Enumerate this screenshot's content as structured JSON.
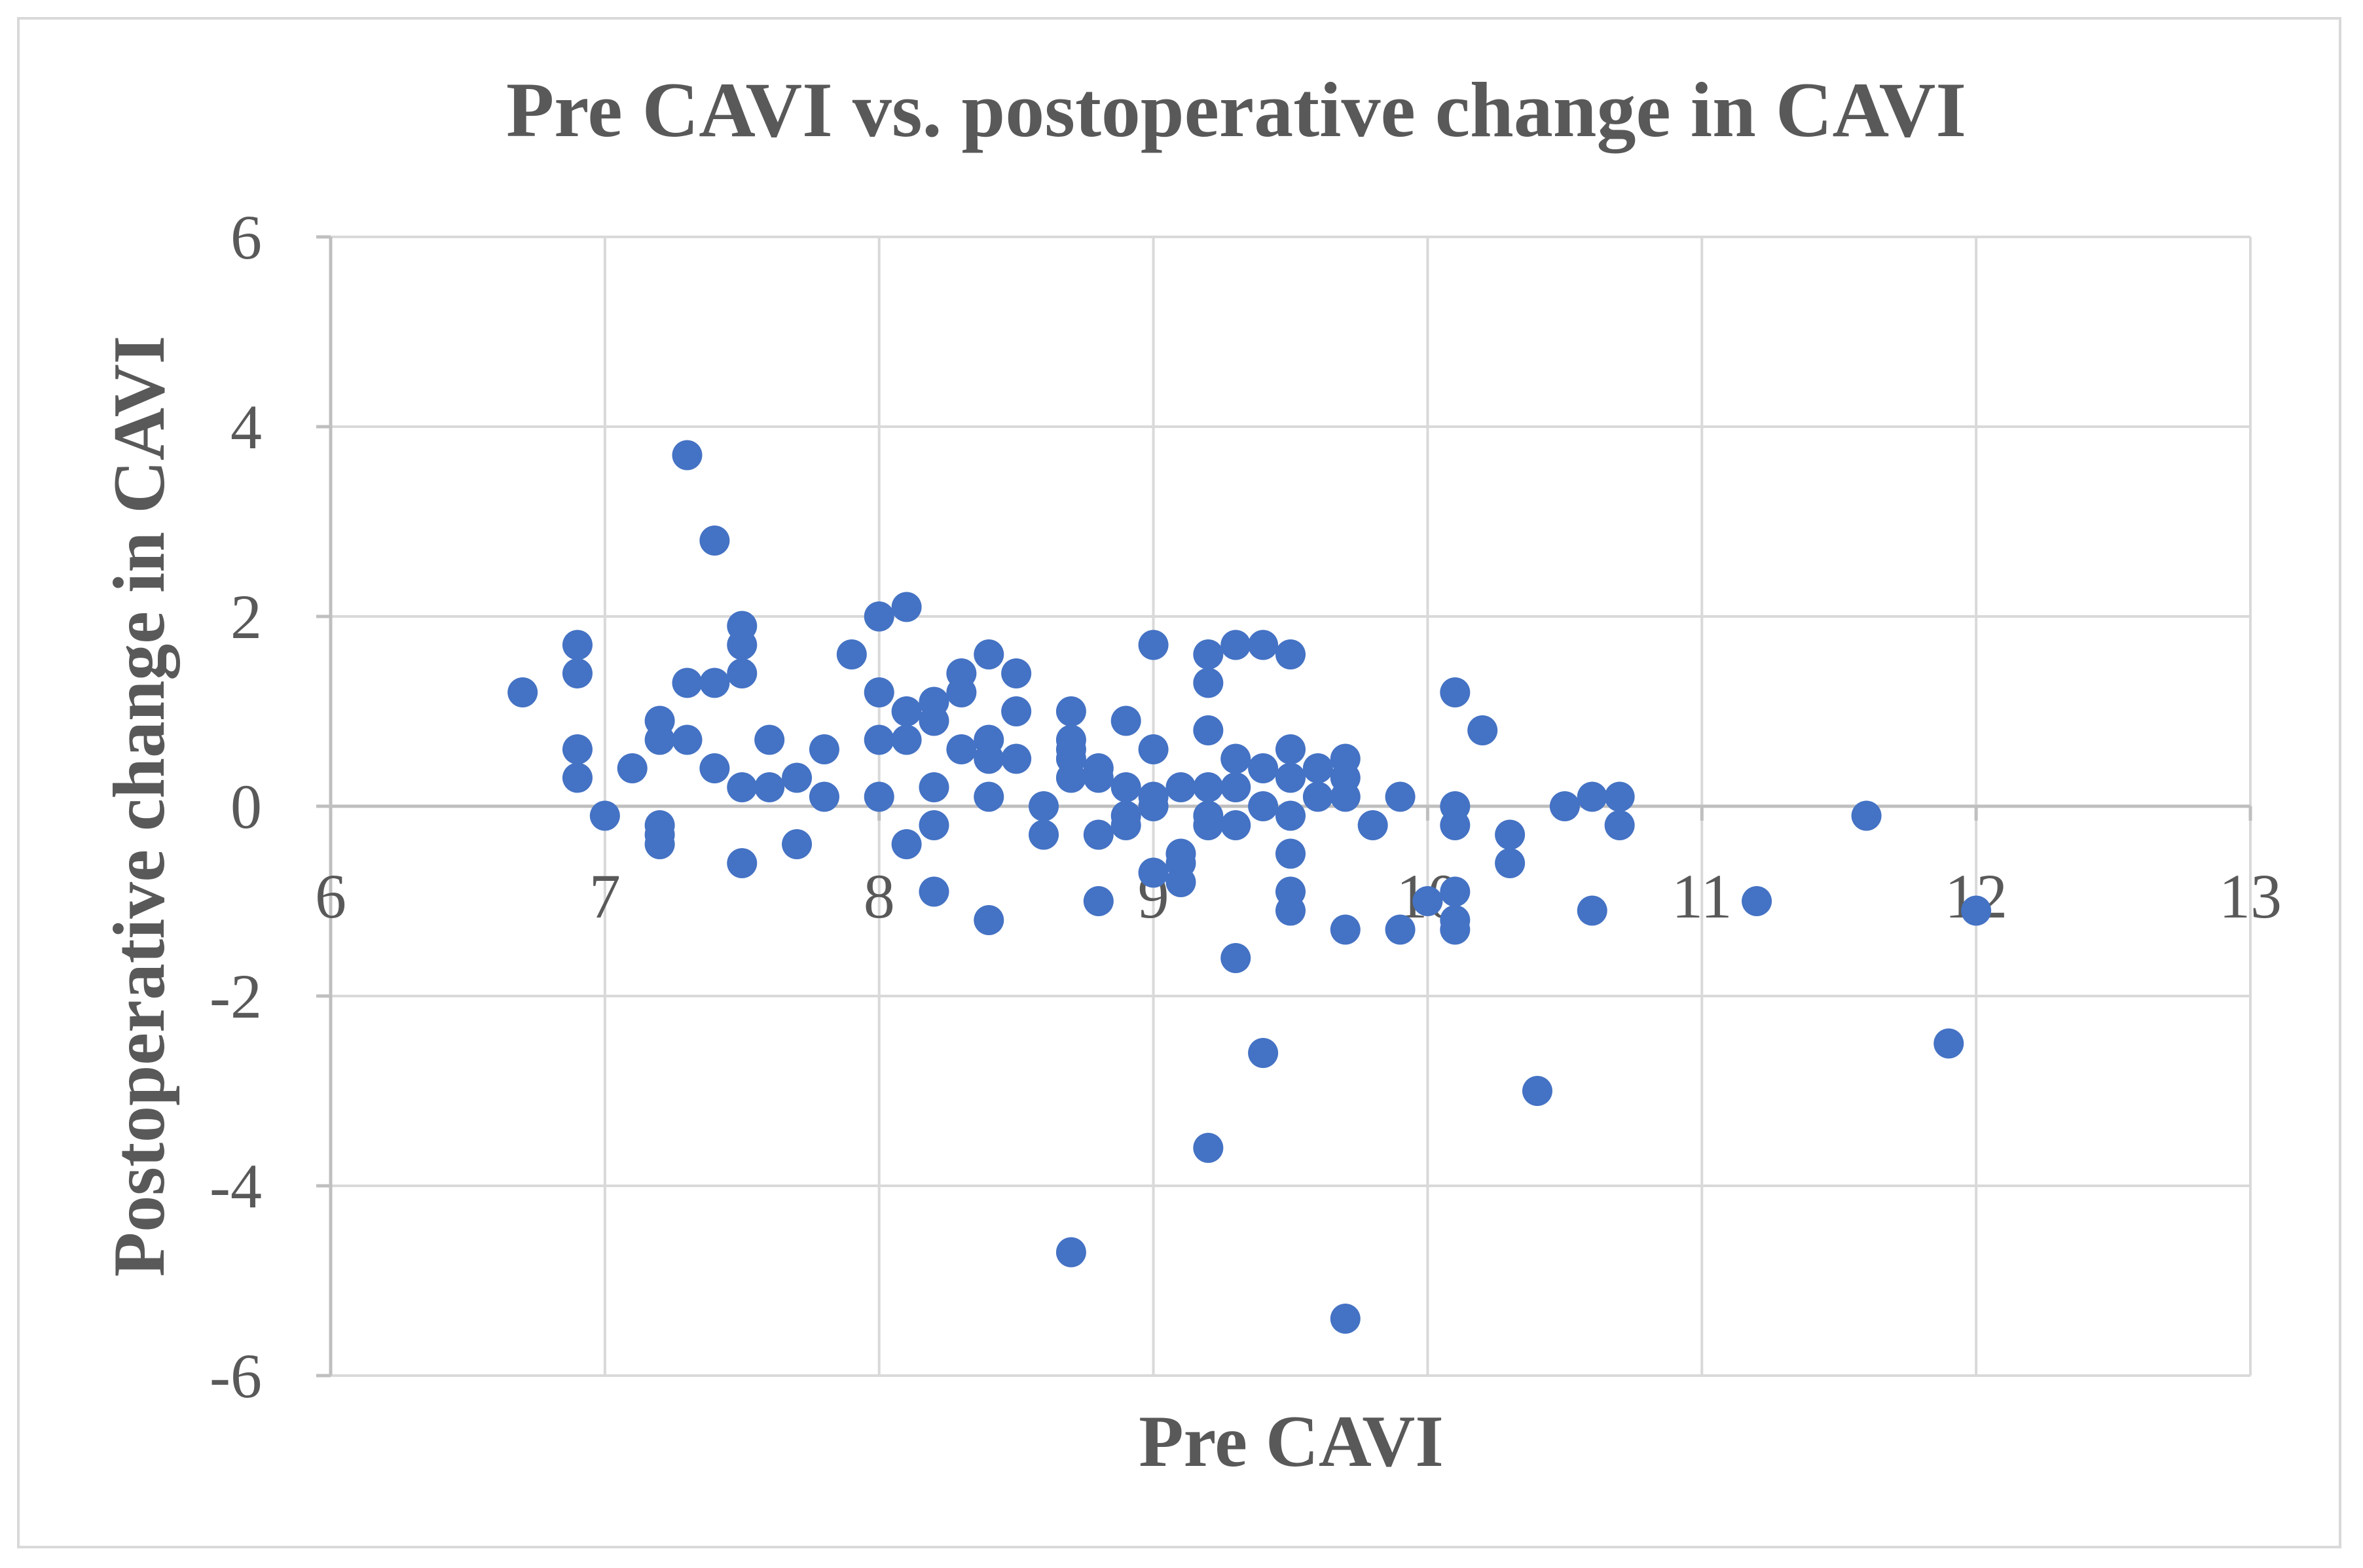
{
  "chart_data": {
    "type": "scatter",
    "title": "Pre CAVI vs. postoperative change in CAVI",
    "xlabel": "Pre CAVI",
    "ylabel": "Postoperative change in CAVI",
    "xlim": [
      6,
      13
    ],
    "ylim": [
      -6,
      6
    ],
    "x_ticks": [
      6,
      7,
      8,
      9,
      10,
      11,
      12,
      13
    ],
    "y_ticks": [
      6,
      4,
      2,
      0,
      -2,
      -4,
      -6
    ],
    "grid": true,
    "marker_color": "#4472c4",
    "points": [
      [
        6.7,
        1.2
      ],
      [
        6.9,
        1.7
      ],
      [
        6.9,
        1.4
      ],
      [
        6.9,
        0.6
      ],
      [
        6.9,
        0.3
      ],
      [
        7.0,
        -0.1
      ],
      [
        7.1,
        0.4
      ],
      [
        7.2,
        0.9
      ],
      [
        7.2,
        0.7
      ],
      [
        7.2,
        -0.2
      ],
      [
        7.2,
        -0.3
      ],
      [
        7.2,
        -0.4
      ],
      [
        7.3,
        3.7
      ],
      [
        7.3,
        1.3
      ],
      [
        7.3,
        0.7
      ],
      [
        7.4,
        2.8
      ],
      [
        7.4,
        1.3
      ],
      [
        7.4,
        0.4
      ],
      [
        7.5,
        1.9
      ],
      [
        7.5,
        1.7
      ],
      [
        7.5,
        1.4
      ],
      [
        7.5,
        0.2
      ],
      [
        7.5,
        -0.6
      ],
      [
        7.6,
        0.7
      ],
      [
        7.6,
        0.2
      ],
      [
        7.7,
        0.3
      ],
      [
        7.7,
        -0.4
      ],
      [
        7.8,
        0.6
      ],
      [
        7.8,
        0.1
      ],
      [
        7.9,
        1.6
      ],
      [
        8.0,
        2.0
      ],
      [
        8.0,
        1.2
      ],
      [
        8.0,
        0.7
      ],
      [
        8.0,
        0.1
      ],
      [
        8.1,
        2.1
      ],
      [
        8.1,
        1.0
      ],
      [
        8.1,
        0.7
      ],
      [
        8.1,
        -0.4
      ],
      [
        8.2,
        1.1
      ],
      [
        8.2,
        0.9
      ],
      [
        8.2,
        0.2
      ],
      [
        8.2,
        -0.2
      ],
      [
        8.2,
        -0.9
      ],
      [
        8.3,
        1.4
      ],
      [
        8.3,
        1.2
      ],
      [
        8.3,
        0.6
      ],
      [
        8.4,
        1.6
      ],
      [
        8.4,
        0.7
      ],
      [
        8.4,
        0.5
      ],
      [
        8.4,
        0.1
      ],
      [
        8.4,
        -1.2
      ],
      [
        8.5,
        1.4
      ],
      [
        8.5,
        1.0
      ],
      [
        8.5,
        0.5
      ],
      [
        8.6,
        0.0
      ],
      [
        8.6,
        -0.3
      ],
      [
        8.7,
        1.0
      ],
      [
        8.7,
        0.7
      ],
      [
        8.7,
        0.6
      ],
      [
        8.7,
        0.5
      ],
      [
        8.7,
        0.3
      ],
      [
        8.7,
        -4.7
      ],
      [
        8.8,
        0.4
      ],
      [
        8.8,
        0.3
      ],
      [
        8.8,
        -0.3
      ],
      [
        8.8,
        -1.0
      ],
      [
        8.9,
        0.9
      ],
      [
        8.9,
        0.2
      ],
      [
        8.9,
        -0.1
      ],
      [
        8.9,
        -0.2
      ],
      [
        9.0,
        1.7
      ],
      [
        9.0,
        0.6
      ],
      [
        9.0,
        0.1
      ],
      [
        9.0,
        0.0
      ],
      [
        9.0,
        -0.7
      ],
      [
        9.1,
        0.2
      ],
      [
        9.1,
        -0.5
      ],
      [
        9.1,
        -0.6
      ],
      [
        9.1,
        -0.8
      ],
      [
        9.2,
        1.6
      ],
      [
        9.2,
        1.3
      ],
      [
        9.2,
        0.8
      ],
      [
        9.2,
        0.2
      ],
      [
        9.2,
        -0.1
      ],
      [
        9.2,
        -0.2
      ],
      [
        9.2,
        -3.6
      ],
      [
        9.3,
        1.7
      ],
      [
        9.3,
        0.5
      ],
      [
        9.3,
        0.2
      ],
      [
        9.3,
        -0.2
      ],
      [
        9.3,
        -1.6
      ],
      [
        9.4,
        1.7
      ],
      [
        9.4,
        0.4
      ],
      [
        9.4,
        0.0
      ],
      [
        9.4,
        -2.6
      ],
      [
        9.5,
        1.6
      ],
      [
        9.5,
        0.6
      ],
      [
        9.5,
        0.3
      ],
      [
        9.5,
        -0.1
      ],
      [
        9.5,
        -0.5
      ],
      [
        9.5,
        -0.9
      ],
      [
        9.5,
        -1.1
      ],
      [
        9.6,
        0.4
      ],
      [
        9.6,
        0.1
      ],
      [
        9.7,
        0.5
      ],
      [
        9.7,
        0.3
      ],
      [
        9.7,
        0.1
      ],
      [
        9.7,
        -1.3
      ],
      [
        9.7,
        -5.4
      ],
      [
        9.8,
        -0.2
      ],
      [
        9.9,
        0.1
      ],
      [
        9.9,
        -1.3
      ],
      [
        10.0,
        -1.0
      ],
      [
        10.1,
        1.2
      ],
      [
        10.1,
        0.0
      ],
      [
        10.1,
        -0.2
      ],
      [
        10.1,
        -0.9
      ],
      [
        10.1,
        -1.2
      ],
      [
        10.1,
        -1.3
      ],
      [
        10.2,
        0.8
      ],
      [
        10.3,
        -0.3
      ],
      [
        10.3,
        -0.6
      ],
      [
        10.4,
        -3.0
      ],
      [
        10.5,
        0.0
      ],
      [
        10.6,
        0.1
      ],
      [
        10.6,
        -1.1
      ],
      [
        10.7,
        0.1
      ],
      [
        10.7,
        -0.2
      ],
      [
        11.2,
        -1.0
      ],
      [
        11.6,
        -0.1
      ],
      [
        11.9,
        -2.5
      ],
      [
        12.0,
        -1.1
      ]
    ]
  }
}
